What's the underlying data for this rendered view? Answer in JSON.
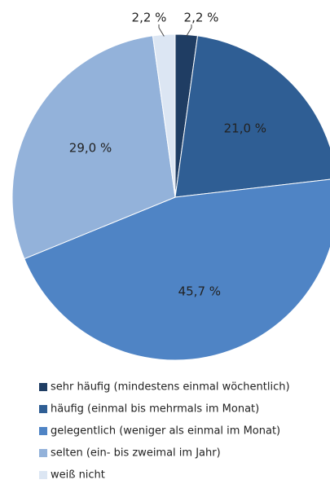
{
  "chart_data": {
    "type": "pie",
    "categories": [
      "sehr häufig (mindestens einmal wöchentlich)",
      "häufig (einmal bis mehrmals im Monat)",
      "gelegentlich (weniger als einmal im Monat)",
      "selten (ein- bis zweimal im Jahr)",
      "weiß nicht"
    ],
    "values": [
      2.2,
      21.0,
      45.7,
      29.0,
      2.2
    ],
    "value_labels": [
      "2,2 %",
      "21,0 %",
      "45,7 %",
      "29,0 %",
      "2,2 %"
    ],
    "colors": [
      "#1f3d63",
      "#2f5e94",
      "#4f84c5",
      "#93b2da",
      "#dce6f3"
    ]
  }
}
